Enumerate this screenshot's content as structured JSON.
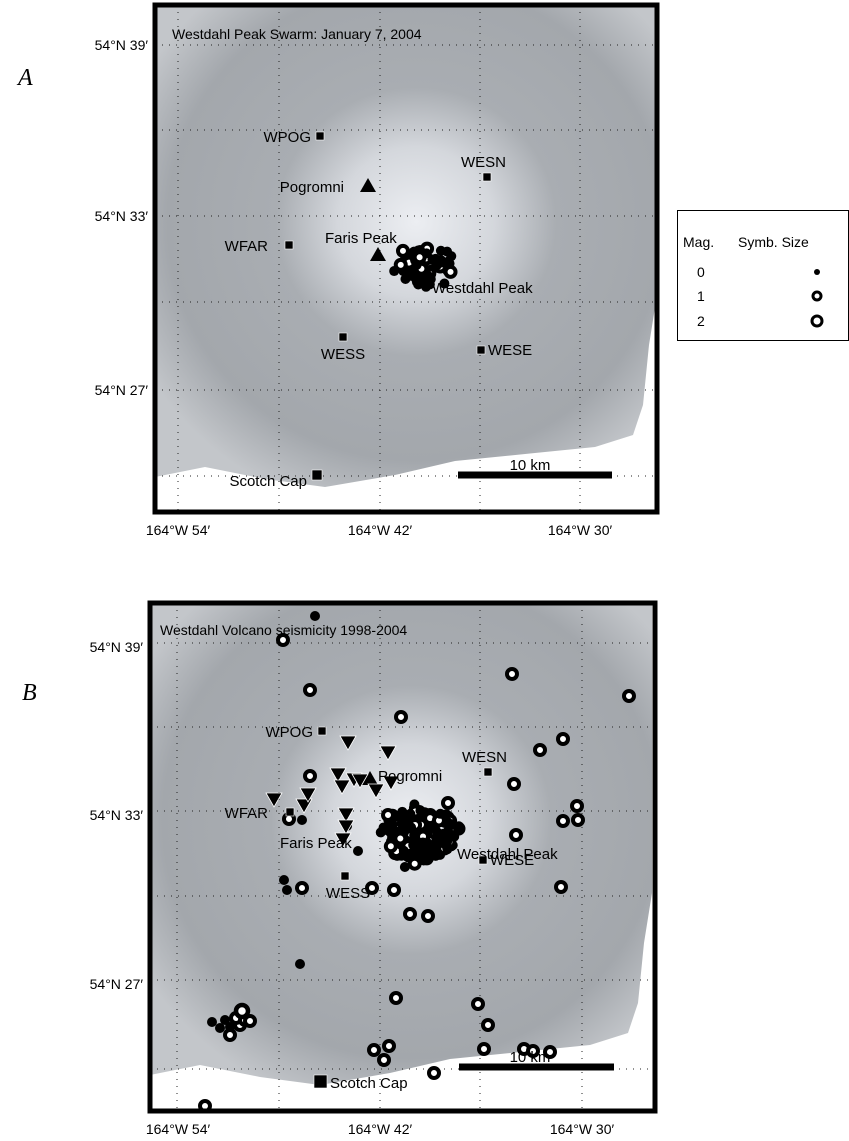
{
  "panel_a": {
    "label": "A",
    "title": "Westdahl Peak Swarm: January 7, 2004",
    "lat_ticks": [
      "54°N 39′",
      "54°N 33′",
      "54°N 27′"
    ],
    "lon_ticks": [
      "164°W 54′",
      "164°W 42′",
      "164°W 30′"
    ],
    "places": [
      "WPOG",
      "WESN",
      "Pogromni",
      "Faris Peak",
      "WFAR",
      "Westdahl Peak",
      "WESS",
      "WESE",
      "Scotch Cap"
    ],
    "scale_label": "10 km"
  },
  "panel_b": {
    "label": "B",
    "title": "Westdahl Volcano seismicity 1998-2004",
    "lat_ticks": [
      "54°N 39′",
      "54°N 33′",
      "54°N 27′"
    ],
    "lon_ticks": [
      "164°W 54′",
      "164°W 42′",
      "164°W 30′"
    ],
    "places": [
      "WPOG",
      "WESN",
      "Pogromni",
      "Faris Peak",
      "WFAR",
      "Westdahl Peak",
      "WESS",
      "WESE",
      "Scotch Cap"
    ],
    "scale_label": "10 km"
  },
  "legend": {
    "headers": [
      "Mag.",
      "Symb. Size"
    ],
    "magnitudes": [
      0,
      1,
      2
    ]
  }
}
